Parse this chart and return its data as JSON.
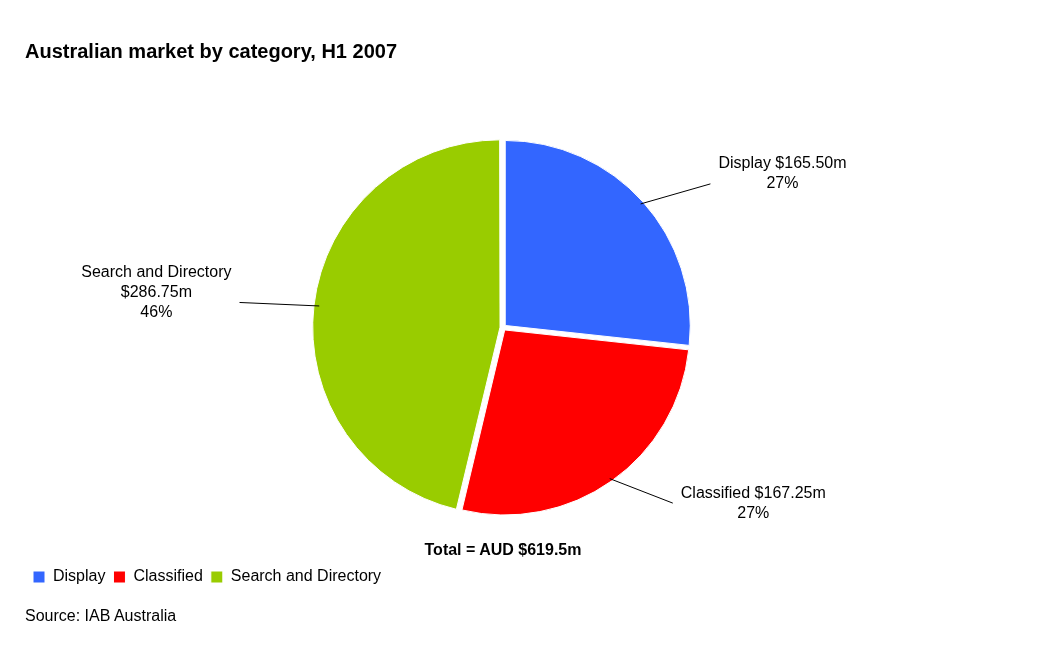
{
  "chart_data": {
    "type": "pie",
    "title": "Australian market by category, H1 2007",
    "categories": [
      "Display",
      "Classified",
      "Search and Directory"
    ],
    "values": [
      165.5,
      167.25,
      286.75
    ],
    "colors": [
      "#3366ff",
      "#ff0000",
      "#99cc00"
    ],
    "value_labels": [
      "$165.50m",
      "$167.25m",
      "$286.75m"
    ],
    "legend": "bottom left",
    "annotations": [
      "Total = AUD $619.5m",
      "Source: IAB Australia",
      {
        "text": "27%",
        "x": "Display"
      },
      {
        "text": "27%",
        "x": "Classified"
      },
      {
        "text": "46%",
        "x": "Search and Directory"
      }
    ]
  }
}
